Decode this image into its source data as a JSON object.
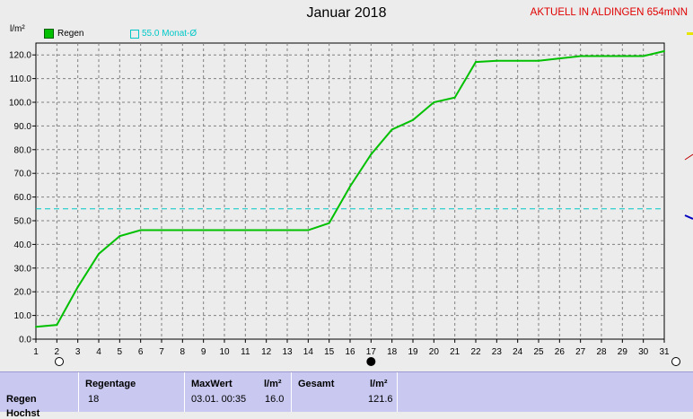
{
  "chart_data": {
    "type": "line",
    "title": "Januar 2018",
    "station": "AKTUELL IN ALDINGEN 654mNN",
    "ylabel": "l/m²",
    "ylim": [
      0,
      125
    ],
    "yticks": [
      "0.0",
      "10.0",
      "20.0",
      "30.0",
      "40.0",
      "50.0",
      "60.0",
      "70.0",
      "80.0",
      "90.0",
      "100.0",
      "110.0",
      "120.0"
    ],
    "xticks": [
      "1",
      "2",
      "3",
      "4",
      "5",
      "6",
      "7",
      "8",
      "9",
      "10",
      "11",
      "12",
      "13",
      "14",
      "15",
      "16",
      "17",
      "18",
      "19",
      "20",
      "21",
      "22",
      "23",
      "24",
      "25",
      "26",
      "27",
      "28",
      "29",
      "30",
      "31"
    ],
    "grid": true,
    "series": [
      {
        "name": "Regen",
        "color": "#00c000",
        "x": [
          1,
          2,
          3,
          4,
          5,
          6,
          7,
          8,
          9,
          10,
          11,
          12,
          13,
          14,
          15,
          16,
          17,
          18,
          19,
          20,
          21,
          22,
          23,
          24,
          25,
          26,
          27,
          28,
          29,
          30,
          31
        ],
        "values": [
          5.2,
          6.0,
          22.0,
          36.0,
          43.5,
          46.0,
          46.0,
          46.0,
          46.0,
          46.0,
          46.0,
          46.0,
          46.0,
          46.0,
          49.0,
          64.5,
          78.0,
          88.5,
          92.5,
          100.0,
          102.0,
          117.0,
          117.5,
          117.5,
          117.5,
          118.5,
          119.5,
          119.5,
          119.5,
          119.5,
          121.6
        ]
      }
    ],
    "reference": {
      "label": "55.0 Monat-Ø",
      "value": 55.0,
      "color": "#00c8c8"
    },
    "moon_phases": [
      {
        "day": 2,
        "phase": "full"
      },
      {
        "day": 17,
        "phase": "new"
      },
      {
        "day": 31,
        "phase": "full"
      }
    ]
  },
  "table": {
    "row_label": "Regen",
    "row_label_2": "Hochst",
    "regentage_label": "Regentage",
    "regentage_value": "18",
    "maxwert_label": "MaxWert",
    "maxwert_unit": "l/m²",
    "maxwert_date": "03.01.  00:35",
    "maxwert_value": "16.0",
    "gesamt_label": "Gesamt",
    "gesamt_unit": "l/m²",
    "gesamt_value": "121.6"
  },
  "colors": {
    "line": "#00c000",
    "grid": "#808080",
    "background": "#ececec",
    "table": "#c8c8f0"
  }
}
